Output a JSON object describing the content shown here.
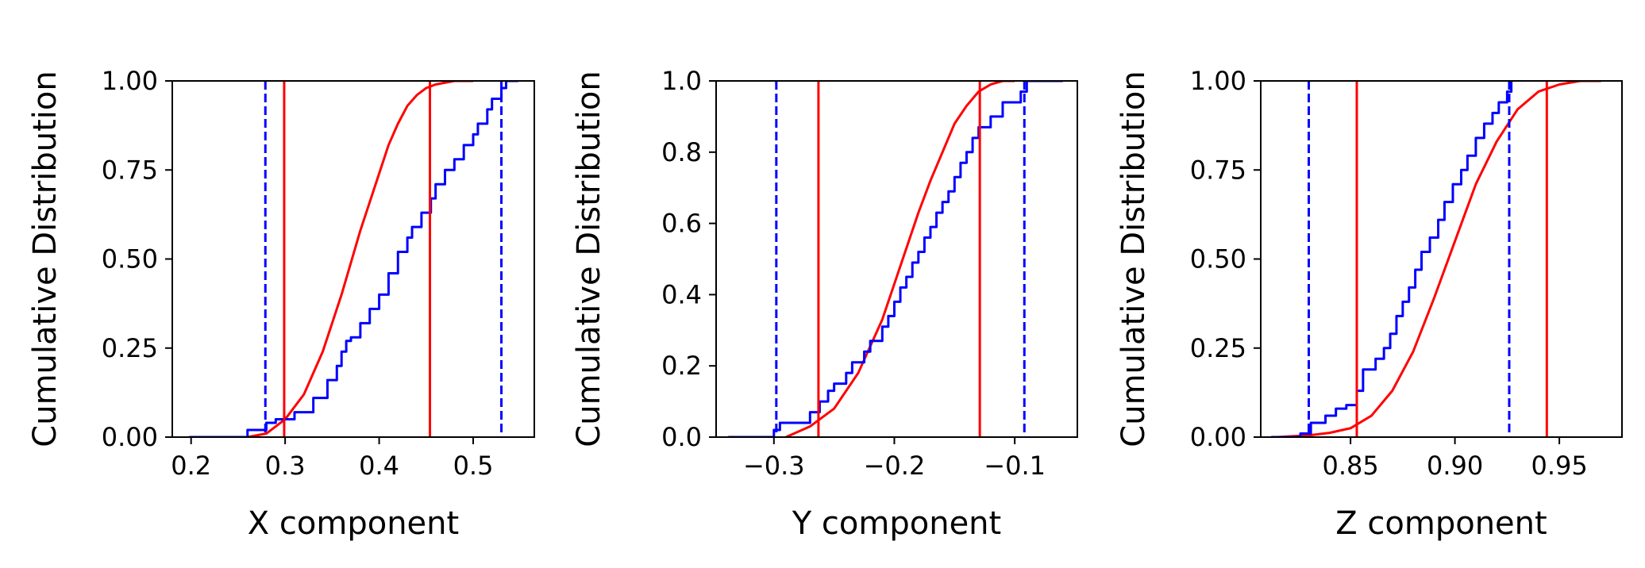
{
  "colors": {
    "ecdf_red": "#ff0000",
    "ecdf_blue": "#0000ff",
    "axes": "#000000"
  },
  "chart_data": [
    {
      "type": "line",
      "xlabel": "X component",
      "ylabel": "Cumulative Distribution",
      "xlim": [
        0.18,
        0.565
      ],
      "ylim": [
        0,
        1
      ],
      "xticks": [
        0.2,
        0.3,
        0.4,
        0.5
      ],
      "xtick_labels": [
        "0.2",
        "0.3",
        "0.4",
        "0.5"
      ],
      "yticks": [
        0,
        0.25,
        0.5,
        0.75,
        1
      ],
      "ytick_labels": [
        "0.00",
        "0.25",
        "0.50",
        "0.75",
        "1.00"
      ],
      "grid": false,
      "series": [
        {
          "color": "#ff0000",
          "style": "solid",
          "kind": "smooth",
          "x": [
            0.26,
            0.28,
            0.3,
            0.32,
            0.34,
            0.36,
            0.37,
            0.38,
            0.39,
            0.4,
            0.41,
            0.42,
            0.43,
            0.44,
            0.45,
            0.46,
            0.48,
            0.5
          ],
          "y": [
            0.0,
            0.01,
            0.05,
            0.12,
            0.24,
            0.4,
            0.49,
            0.58,
            0.66,
            0.74,
            0.82,
            0.88,
            0.93,
            0.96,
            0.98,
            0.99,
            1.0,
            1.0
          ]
        },
        {
          "color": "#0000ff",
          "style": "solid",
          "kind": "step",
          "x": [
            0.198,
            0.26,
            0.28,
            0.29,
            0.31,
            0.33,
            0.345,
            0.355,
            0.36,
            0.365,
            0.37,
            0.38,
            0.39,
            0.4,
            0.41,
            0.42,
            0.43,
            0.435,
            0.445,
            0.455,
            0.46,
            0.47,
            0.48,
            0.49,
            0.5,
            0.505,
            0.515,
            0.52,
            0.53,
            0.535,
            0.548
          ],
          "y": [
            0.0,
            0.02,
            0.04,
            0.05,
            0.07,
            0.11,
            0.16,
            0.2,
            0.24,
            0.27,
            0.28,
            0.32,
            0.36,
            0.4,
            0.46,
            0.52,
            0.56,
            0.59,
            0.63,
            0.67,
            0.71,
            0.75,
            0.78,
            0.82,
            0.85,
            0.88,
            0.92,
            0.95,
            0.98,
            1.0,
            1.0
          ]
        }
      ],
      "vlines": [
        {
          "x": 0.279,
          "color": "#0000ff",
          "style": "dashed"
        },
        {
          "x": 0.299,
          "color": "#ff0000",
          "style": "solid"
        },
        {
          "x": 0.454,
          "color": "#ff0000",
          "style": "solid"
        },
        {
          "x": 0.53,
          "color": "#0000ff",
          "style": "dashed"
        }
      ]
    },
    {
      "type": "line",
      "xlabel": "Y component",
      "ylabel": "Cumulative Distribution",
      "xlim": [
        -0.348,
        -0.048
      ],
      "ylim": [
        0,
        1
      ],
      "xticks": [
        -0.3,
        -0.2,
        -0.1
      ],
      "xtick_labels": [
        "−0.3",
        "−0.2",
        "−0.1"
      ],
      "yticks": [
        0,
        0.2,
        0.4,
        0.6,
        0.8,
        1
      ],
      "ytick_labels": [
        "0.0",
        "0.2",
        "0.4",
        "0.6",
        "0.8",
        "1.0"
      ],
      "grid": false,
      "series": [
        {
          "color": "#ff0000",
          "style": "solid",
          "kind": "smooth",
          "x": [
            -0.29,
            -0.27,
            -0.25,
            -0.23,
            -0.21,
            -0.2,
            -0.19,
            -0.18,
            -0.17,
            -0.16,
            -0.15,
            -0.14,
            -0.13,
            -0.12,
            -0.11,
            -0.1
          ],
          "y": [
            0.0,
            0.03,
            0.08,
            0.18,
            0.33,
            0.43,
            0.53,
            0.63,
            0.72,
            0.8,
            0.88,
            0.93,
            0.97,
            0.99,
            1.0,
            1.0
          ]
        },
        {
          "color": "#0000ff",
          "style": "solid",
          "kind": "step",
          "x": [
            -0.338,
            -0.3,
            -0.295,
            -0.27,
            -0.262,
            -0.255,
            -0.25,
            -0.24,
            -0.235,
            -0.225,
            -0.22,
            -0.21,
            -0.205,
            -0.2,
            -0.195,
            -0.19,
            -0.185,
            -0.18,
            -0.175,
            -0.17,
            -0.165,
            -0.16,
            -0.155,
            -0.15,
            -0.145,
            -0.14,
            -0.135,
            -0.13,
            -0.12,
            -0.11,
            -0.095,
            -0.09,
            -0.06
          ],
          "y": [
            0.0,
            0.02,
            0.04,
            0.07,
            0.1,
            0.13,
            0.15,
            0.18,
            0.21,
            0.24,
            0.27,
            0.31,
            0.34,
            0.38,
            0.42,
            0.45,
            0.49,
            0.52,
            0.56,
            0.59,
            0.63,
            0.66,
            0.69,
            0.73,
            0.77,
            0.8,
            0.84,
            0.87,
            0.9,
            0.94,
            0.97,
            1.0,
            1.0
          ]
        }
      ],
      "vlines": [
        {
          "x": -0.298,
          "color": "#0000ff",
          "style": "dashed"
        },
        {
          "x": -0.263,
          "color": "#ff0000",
          "style": "solid"
        },
        {
          "x": -0.129,
          "color": "#ff0000",
          "style": "solid"
        },
        {
          "x": -0.092,
          "color": "#0000ff",
          "style": "dashed"
        }
      ]
    },
    {
      "type": "line",
      "xlabel": "Z component",
      "ylabel": "Cumulative Distribution",
      "xlim": [
        0.807,
        0.98
      ],
      "ylim": [
        0,
        1
      ],
      "xticks": [
        0.85,
        0.9,
        0.95
      ],
      "xtick_labels": [
        "0.85",
        "0.90",
        "0.95"
      ],
      "yticks": [
        0,
        0.25,
        0.5,
        0.75,
        1
      ],
      "ytick_labels": [
        "0.00",
        "0.25",
        "0.50",
        "0.75",
        "1.00"
      ],
      "grid": false,
      "series": [
        {
          "color": "#ff0000",
          "style": "solid",
          "kind": "smooth",
          "x": [
            0.815,
            0.83,
            0.84,
            0.85,
            0.86,
            0.87,
            0.88,
            0.89,
            0.9,
            0.91,
            0.92,
            0.93,
            0.94,
            0.95,
            0.96,
            0.97
          ],
          "y": [
            0.0,
            0.005,
            0.012,
            0.025,
            0.06,
            0.13,
            0.24,
            0.39,
            0.55,
            0.71,
            0.83,
            0.92,
            0.97,
            0.99,
            1.0,
            1.0
          ]
        },
        {
          "color": "#0000ff",
          "style": "solid",
          "kind": "step",
          "x": [
            0.812,
            0.826,
            0.831,
            0.838,
            0.843,
            0.848,
            0.853,
            0.856,
            0.862,
            0.866,
            0.869,
            0.872,
            0.875,
            0.878,
            0.881,
            0.884,
            0.888,
            0.892,
            0.895,
            0.899,
            0.903,
            0.906,
            0.91,
            0.914,
            0.918,
            0.921,
            0.925,
            0.927
          ],
          "y": [
            0.0,
            0.01,
            0.04,
            0.06,
            0.08,
            0.09,
            0.13,
            0.19,
            0.22,
            0.25,
            0.29,
            0.34,
            0.38,
            0.42,
            0.47,
            0.52,
            0.56,
            0.61,
            0.66,
            0.71,
            0.75,
            0.79,
            0.84,
            0.88,
            0.91,
            0.94,
            0.97,
            1.0
          ]
        }
      ],
      "vlines": [
        {
          "x": 0.83,
          "color": "#0000ff",
          "style": "dashed"
        },
        {
          "x": 0.853,
          "color": "#ff0000",
          "style": "solid"
        },
        {
          "x": 0.926,
          "color": "#0000ff",
          "style": "dashed"
        },
        {
          "x": 0.944,
          "color": "#ff0000",
          "style": "solid"
        }
      ]
    }
  ]
}
